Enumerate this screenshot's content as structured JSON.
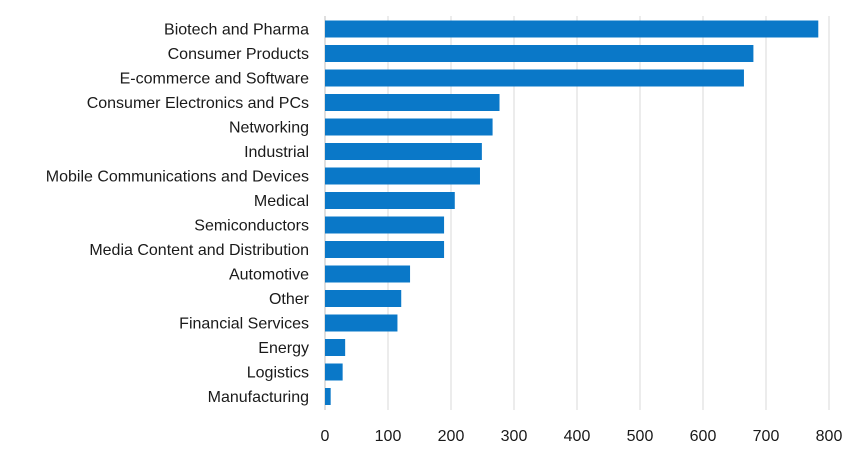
{
  "chart_data": {
    "type": "bar",
    "orientation": "horizontal",
    "title": "",
    "xlabel": "",
    "ylabel": "",
    "categories": [
      "Biotech and Pharma",
      "Consumer Products",
      "E-commerce and Software",
      "Consumer Electronics and PCs",
      "Networking",
      "Industrial",
      "Mobile Communications and Devices",
      "Medical",
      "Semiconductors",
      "Media Content and Distribution",
      "Automotive",
      "Other",
      "Financial Services",
      "Energy",
      "Logistics",
      "Manufacturing"
    ],
    "values": [
      783,
      680,
      665,
      277,
      266,
      249,
      246,
      206,
      189,
      189,
      135,
      121,
      115,
      32,
      28,
      9
    ],
    "xlim": [
      0,
      800
    ],
    "xticks": [
      0,
      100,
      200,
      300,
      400,
      500,
      600,
      700,
      800
    ],
    "grid": "vertical",
    "bar_color": "#0a78c8",
    "legend": "none"
  }
}
